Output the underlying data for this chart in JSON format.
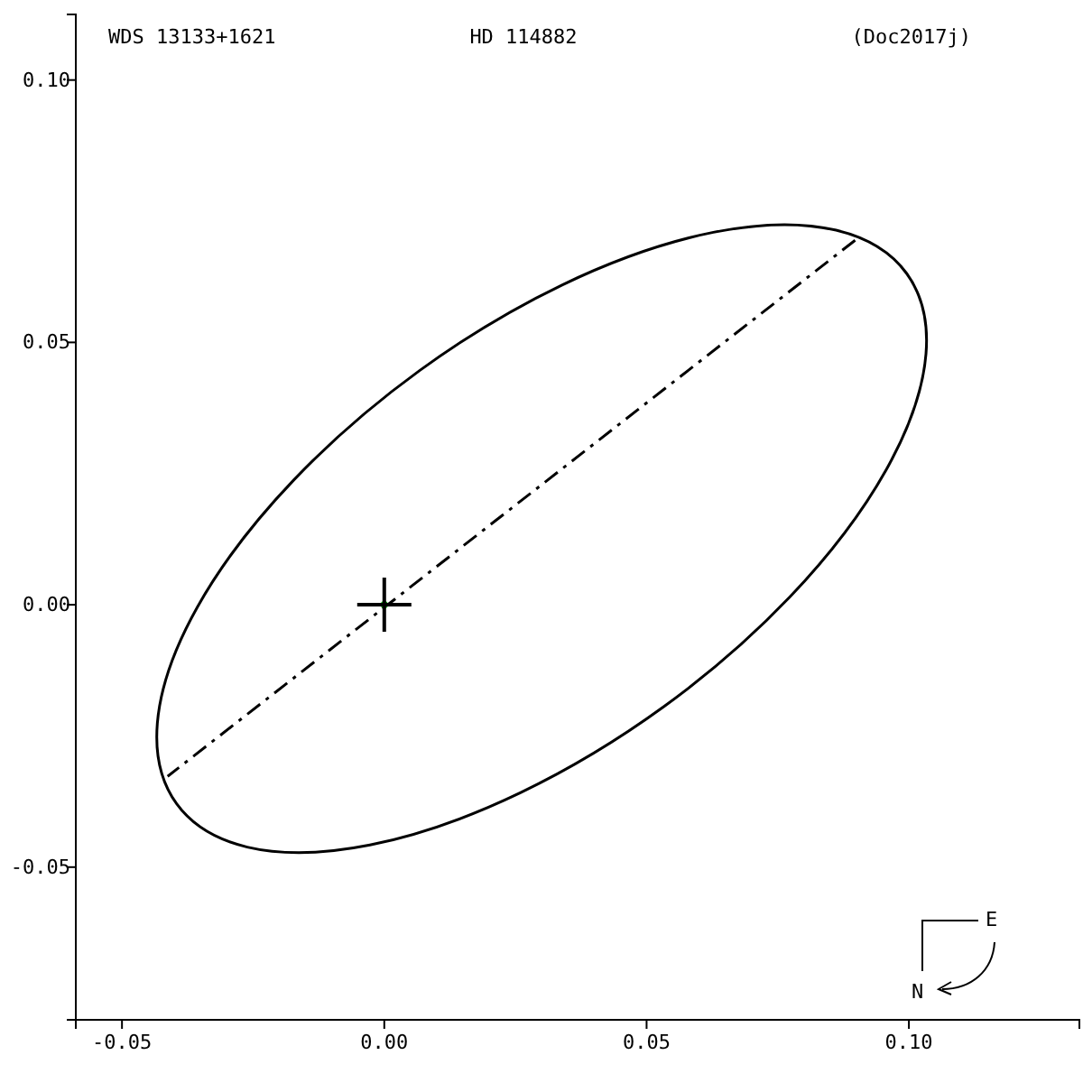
{
  "chart_data": {
    "type": "line",
    "title": "HD 114882",
    "annotations": [
      "WDS 13133+1621",
      "(Doc2017j)",
      "E",
      "N"
    ],
    "xlim": [
      -0.0588,
      0.1325
    ],
    "ylim": [
      -0.0791,
      0.1125
    ],
    "xticks": [
      -0.05,
      {
        "value": 0,
        "label": "0.00"
      },
      0.05,
      {
        "value": 0.1,
        "label": "0.10"
      }
    ],
    "yticks": [
      {
        "value": -0.05,
        "label": "-0.05"
      },
      {
        "value": 0,
        "label": "0.00"
      },
      0.05,
      {
        "value": 0.1,
        "label": "0.10"
      }
    ],
    "grid": false,
    "series": [
      {
        "color": "#000000",
        "line_style": "dashed",
        "x": [
          -0.0413,
          0.0898
        ],
        "values": [
          -0.0327,
          0.0695
        ]
      },
      {
        "type": "scatter",
        "color": "#00aa00",
        "marker": "circle",
        "x": [
          0
        ],
        "values": [
          0
        ]
      }
    ]
  }
}
